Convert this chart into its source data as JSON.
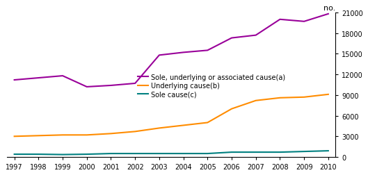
{
  "years": [
    1997,
    1998,
    1999,
    2000,
    2001,
    2002,
    2003,
    2004,
    2005,
    2006,
    2007,
    2008,
    2009,
    2010
  ],
  "sole_underlying_associated": [
    11200,
    11500,
    11800,
    10200,
    10400,
    10700,
    14800,
    15200,
    15500,
    17300,
    17700,
    20000,
    19700,
    20800
  ],
  "underlying": [
    3000,
    3100,
    3200,
    3200,
    3400,
    3700,
    4200,
    4600,
    5000,
    7000,
    8200,
    8600,
    8700,
    9100
  ],
  "sole": [
    400,
    400,
    350,
    400,
    500,
    500,
    500,
    500,
    500,
    700,
    700,
    700,
    800,
    900
  ],
  "color_sole_underlying_associated": "#990099",
  "color_underlying": "#FF8C00",
  "color_sole": "#008080",
  "ylabel": "no.",
  "ylim": [
    0,
    21000
  ],
  "yticks": [
    0,
    3000,
    6000,
    9000,
    12000,
    15000,
    18000,
    21000
  ],
  "xlim_min": 1997,
  "xlim_max": 2010,
  "legend_label_a": "Sole, underlying or associated cause(a)",
  "legend_label_b": "Underlying cause(b)",
  "legend_label_c": "Sole cause(c)",
  "linewidth": 1.5,
  "tick_fontsize": 7,
  "legend_fontsize": 7
}
